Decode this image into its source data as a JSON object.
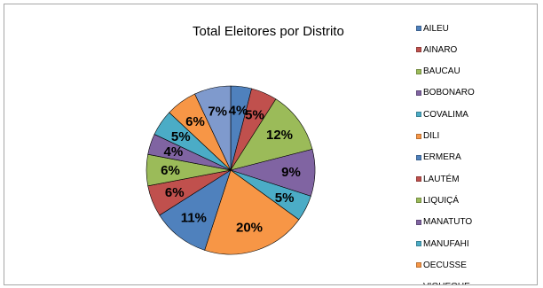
{
  "chart_data": {
    "type": "pie",
    "title": "Total Eleitores por Distrito",
    "legend_position": "right",
    "categories": [
      "AILEU",
      "AINARO",
      "BAUCAU",
      "BOBONARO",
      "COVALIMA",
      "DILI",
      "ERMERA",
      "LAUTÉM",
      "LIQUIÇÁ",
      "MANATUTO",
      "MANUFAHI",
      "OECUSSE",
      "VIQUEQUE"
    ],
    "values": [
      4,
      5,
      12,
      9,
      5,
      20,
      11,
      6,
      6,
      4,
      5,
      6,
      7
    ],
    "data_labels": [
      "4%",
      "5%",
      "12%",
      "9%",
      "5%",
      "20%",
      "11%",
      "6%",
      "6%",
      "4%",
      "5%",
      "6%",
      "7%"
    ],
    "colors": [
      "#4F81BD",
      "#C0504D",
      "#9BBB59",
      "#8064A2",
      "#4BACC6",
      "#F79646",
      "#4F81BD",
      "#C0504D",
      "#9BBB59",
      "#8064A2",
      "#4BACC6",
      "#F79646",
      "#7F9ACD"
    ]
  }
}
